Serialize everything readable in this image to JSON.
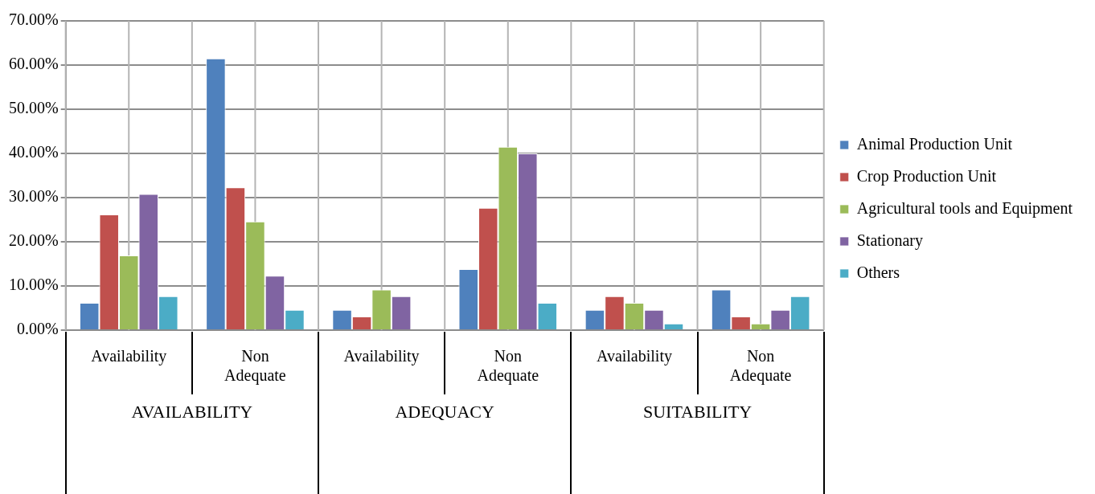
{
  "chart_data": {
    "type": "bar",
    "categories": [
      "Availability",
      "Non Adequate",
      "Availability",
      "Non Adequate",
      "Availability",
      "Non Adequate"
    ],
    "annotations": [
      "AVAILABILITY",
      "ADEQUACY",
      "SUITABILITY"
    ],
    "series": [
      {
        "name": "Animal Production Unit",
        "color": "#4f81bd",
        "values": [
          6.2,
          61.5,
          4.6,
          13.8,
          4.6,
          9.2
        ]
      },
      {
        "name": "Crop Production Unit",
        "color": "#c0504d",
        "values": [
          26.2,
          32.3,
          3.1,
          27.7,
          7.7,
          3.1
        ]
      },
      {
        "name": "Agricultural tools and Equipment",
        "color": "#9bbb59",
        "values": [
          16.9,
          24.6,
          9.2,
          41.5,
          6.2,
          1.5
        ]
      },
      {
        "name": "Stationary",
        "color": "#8064a2",
        "values": [
          30.8,
          12.3,
          7.7,
          40.0,
          4.6,
          4.6
        ]
      },
      {
        "name": "Others",
        "color": "#4bacc6",
        "values": [
          7.7,
          4.6,
          null,
          6.2,
          1.5,
          7.7
        ]
      }
    ],
    "ylim": [
      0,
      70
    ],
    "yticks": [
      {
        "value": 0,
        "label": "0.00%"
      },
      {
        "value": 10,
        "label": "10.00%"
      },
      {
        "value": 20,
        "label": "20.00%"
      },
      {
        "value": 30,
        "label": "30.00%"
      },
      {
        "value": 40,
        "label": "40.00%"
      },
      {
        "value": 50,
        "label": "50.00%"
      },
      {
        "value": 60,
        "label": "60.00%"
      },
      {
        "value": 70,
        "label": "70.00%"
      }
    ],
    "grid": true,
    "legend": "right"
  }
}
